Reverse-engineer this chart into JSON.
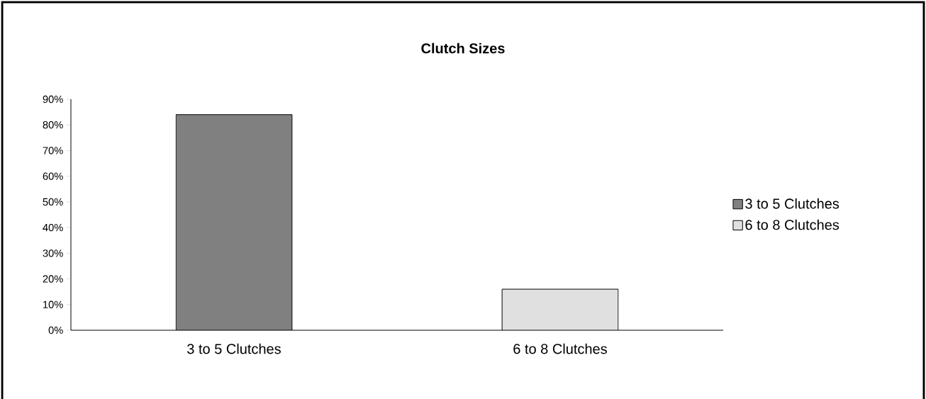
{
  "chart_data": {
    "type": "bar",
    "title": "Clutch Sizes",
    "categories": [
      "3 to 5 Clutches",
      "6 to 8 Clutches"
    ],
    "series": [
      {
        "name": "3 to 5 Clutches",
        "color": "#808080",
        "values": [
          84,
          null
        ]
      },
      {
        "name": "6 to 8 Clutches",
        "color": "#e0e0e0",
        "values": [
          null,
          16
        ]
      }
    ],
    "ylim": [
      0,
      90
    ],
    "yticks": [
      {
        "value": 0,
        "label": "0%"
      },
      {
        "value": 10,
        "label": "10%"
      },
      {
        "value": 20,
        "label": "20%"
      },
      {
        "value": 30,
        "label": "30%"
      },
      {
        "value": 40,
        "label": "40%"
      },
      {
        "value": 50,
        "label": "50%"
      },
      {
        "value": 60,
        "label": "60%"
      },
      {
        "value": 70,
        "label": "70%"
      },
      {
        "value": 80,
        "label": "80%"
      },
      {
        "value": 90,
        "label": "90%"
      }
    ],
    "legend": "right"
  }
}
